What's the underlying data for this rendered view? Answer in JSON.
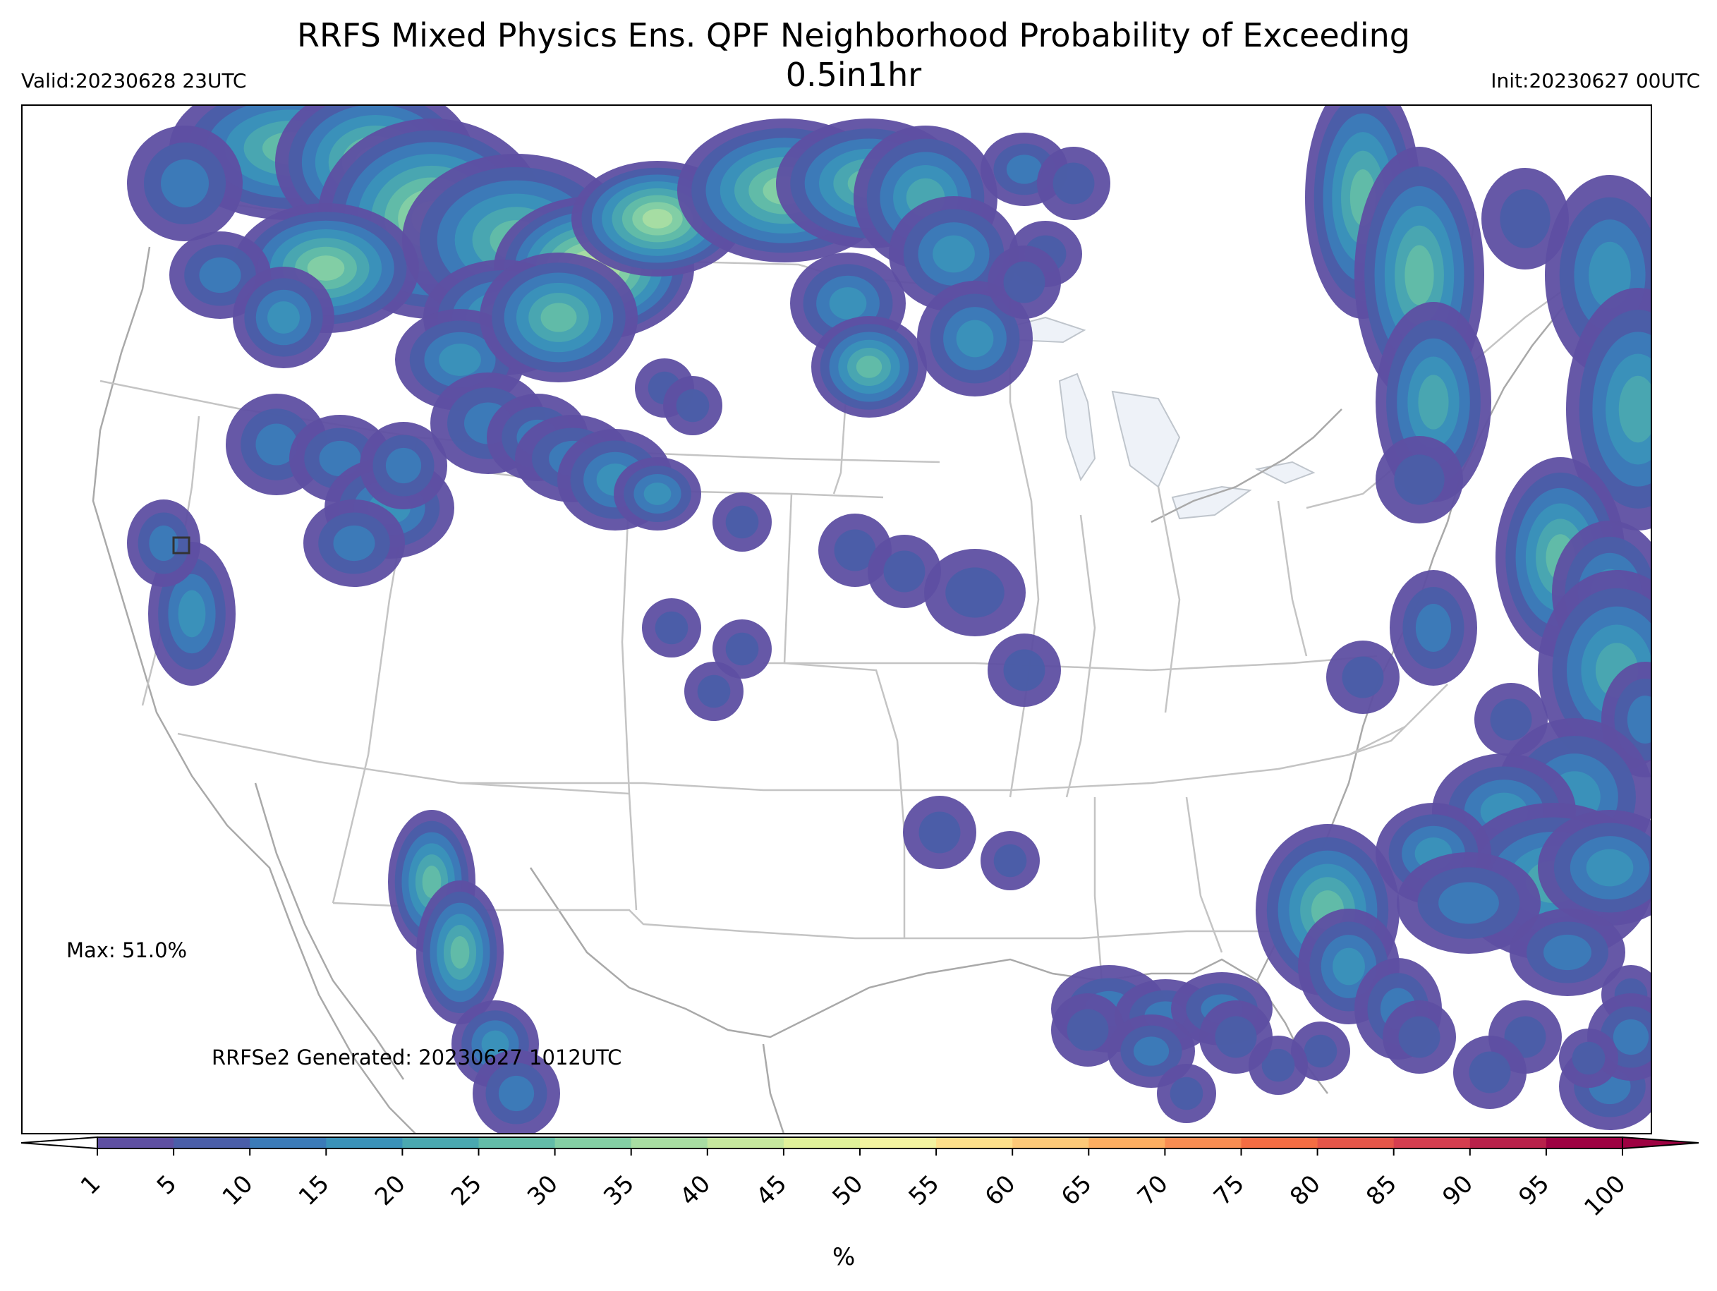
{
  "title": "RRFS Mixed Physics Ens. QPF Neighborhood Probability of Exceeding 0.5in1hr",
  "valid": "Valid:20230628 23UTC",
  "init": "Init:20230627 00UTC",
  "max_label": "Max: 51.0%",
  "generated": "RRFSe2 Generated: 20230627 1012UTC",
  "colorbar": {
    "unit": "%",
    "levels": [
      1,
      5,
      10,
      15,
      20,
      25,
      30,
      35,
      40,
      45,
      50,
      55,
      60,
      65,
      70,
      75,
      80,
      85,
      90,
      95,
      100
    ],
    "colors": [
      "#5e4fa2",
      "#4a5ea8",
      "#3b7bb8",
      "#3a92b9",
      "#4aa8b0",
      "#63bca8",
      "#84cfa4",
      "#a8dda2",
      "#c6e89e",
      "#e0f19a",
      "#f3f3a0",
      "#fee08b",
      "#fdc978",
      "#fdae61",
      "#f88d52",
      "#f46d43",
      "#e55649",
      "#d53e4f",
      "#b8214a",
      "#9e0142"
    ],
    "extend": "both"
  },
  "map": {
    "projection": "Lambert conformal (CONUS)",
    "max_marker": "square-marker",
    "features": [
      "state-borders-line",
      "coastlines-line",
      "lakes-fill",
      "probability-contours"
    ]
  }
}
